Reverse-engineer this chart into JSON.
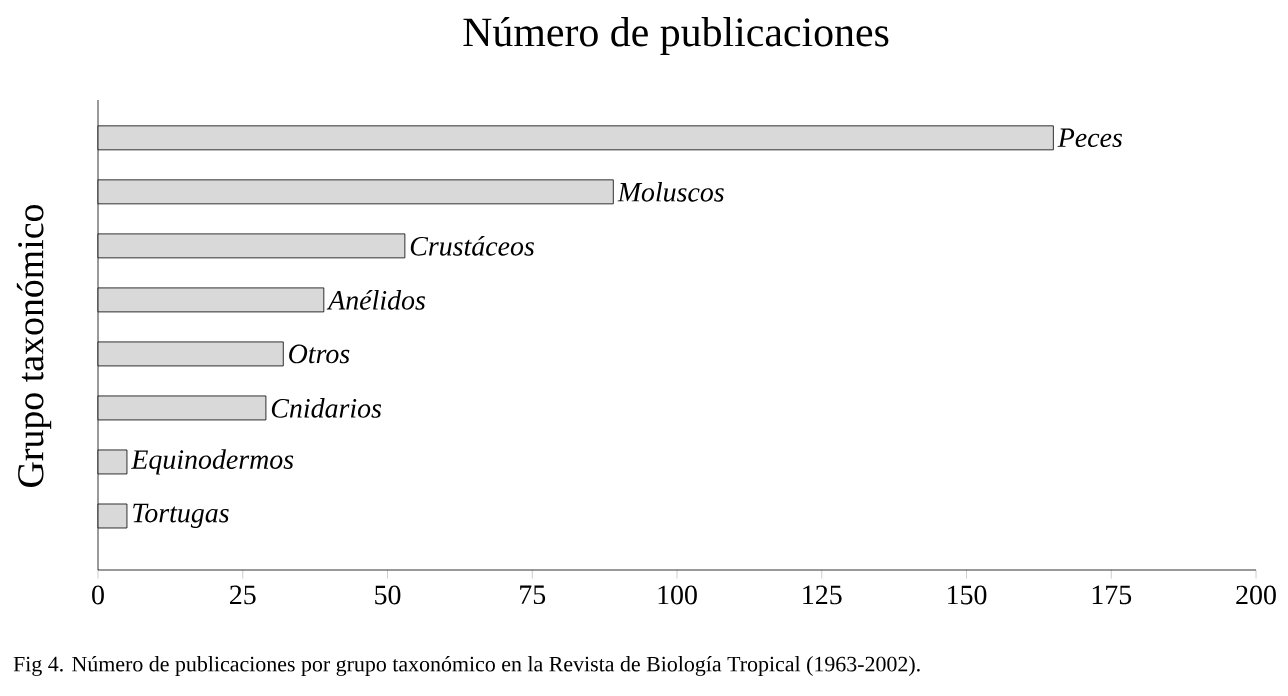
{
  "chart_data": {
    "type": "bar",
    "orientation": "horizontal",
    "title": "Número de publicaciones",
    "ylabel": "Grupo taxonómico",
    "categories": [
      "Peces",
      "Moluscos",
      "Crustáceos",
      "Anélidos",
      "Otros",
      "Cnidarios",
      "Equinodermos",
      "Tortugas"
    ],
    "values": [
      165,
      89,
      53,
      39,
      32,
      29,
      5,
      5
    ],
    "color": "#d9d9d9",
    "xlim": [
      0,
      200
    ],
    "xticks": [
      0,
      25,
      50,
      75,
      100,
      125,
      150,
      175,
      200
    ],
    "tick_labels": "x",
    "annotations": [
      "Fig 4.  Número de publicaciones por grupo taxonómico en la Revista de Biología Tropical (1963-2002)."
    ]
  }
}
